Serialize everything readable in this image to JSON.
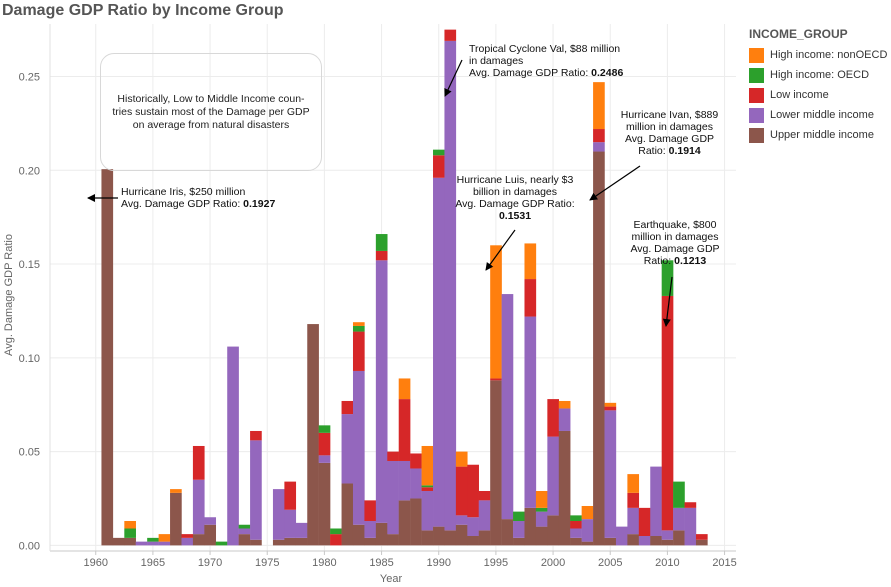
{
  "chart_data": {
    "type": "bar",
    "stacked": true,
    "title": "Damage GDP Ratio by Income Group",
    "xlabel": "Year",
    "ylabel": "Avg. Damage GDP Ratio",
    "xlim": [
      1956,
      2016
    ],
    "ylim": [
      -0.003,
      0.278
    ],
    "xticks": [
      1960,
      1965,
      1970,
      1975,
      1980,
      1985,
      1990,
      1995,
      2000,
      2005,
      2010,
      2015
    ],
    "xtick_labels": [
      "1960",
      "1965",
      "1970",
      "1975",
      "1980",
      "1985",
      "1990",
      "1995",
      "2000",
      "2005",
      "2010",
      "2015"
    ],
    "yticks": [
      0,
      0.05,
      0.1,
      0.15,
      0.2,
      0.25
    ],
    "ytick_labels": [
      "0.00",
      "0.05",
      "0.10",
      "0.15",
      "0.20",
      "0.25"
    ],
    "grid": true,
    "legend_title": "INCOME_GROUP",
    "legend_position": "right",
    "series": [
      {
        "name": "Upper middle income",
        "color": "#8c564b"
      },
      {
        "name": "Lower middle income",
        "color": "#9467bd"
      },
      {
        "name": "Low income",
        "color": "#d62728"
      },
      {
        "name": "High income: OECD",
        "color": "#2ca02c"
      },
      {
        "name": "High income: nonOECD",
        "color": "#ff7f0e"
      }
    ],
    "legend_order": [
      4,
      3,
      2,
      1,
      0
    ],
    "bars": [
      {
        "year": 1961,
        "segments": [
          0.2006,
          0,
          0,
          0,
          0
        ]
      },
      {
        "year": 1962,
        "segments": [
          0.004,
          0,
          0,
          0,
          0
        ]
      },
      {
        "year": 1963,
        "segments": [
          0.004,
          0,
          0,
          0.005,
          0.004
        ]
      },
      {
        "year": 1964,
        "segments": [
          0,
          0.002,
          0,
          0,
          0
        ]
      },
      {
        "year": 1965,
        "segments": [
          0,
          0.002,
          0,
          0.002,
          0
        ]
      },
      {
        "year": 1966,
        "segments": [
          0,
          0.002,
          0,
          0,
          0.004
        ]
      },
      {
        "year": 1967,
        "segments": [
          0.028,
          0,
          0,
          0,
          0.002
        ]
      },
      {
        "year": 1968,
        "segments": [
          0,
          0.004,
          0.002,
          0,
          0
        ]
      },
      {
        "year": 1969,
        "segments": [
          0.006,
          0.029,
          0.018,
          0,
          0
        ]
      },
      {
        "year": 1970,
        "segments": [
          0.011,
          0.004,
          0,
          0,
          0
        ]
      },
      {
        "year": 1971,
        "segments": [
          0,
          0,
          0,
          0.002,
          0
        ]
      },
      {
        "year": 1972,
        "segments": [
          0,
          0.106,
          0,
          0,
          0
        ]
      },
      {
        "year": 1973,
        "segments": [
          0.006,
          0.003,
          0,
          0.002,
          0
        ]
      },
      {
        "year": 1974,
        "segments": [
          0.003,
          0.053,
          0.005,
          0,
          0
        ]
      },
      {
        "year": 1976,
        "segments": [
          0.003,
          0.027,
          0,
          0,
          0
        ]
      },
      {
        "year": 1977,
        "segments": [
          0.004,
          0.015,
          0.015,
          0,
          0
        ]
      },
      {
        "year": 1978,
        "segments": [
          0.004,
          0.008,
          0,
          0,
          0
        ]
      },
      {
        "year": 1979,
        "segments": [
          0.118,
          0,
          0,
          0,
          0
        ]
      },
      {
        "year": 1980,
        "segments": [
          0.044,
          0.004,
          0.012,
          0.004,
          0
        ]
      },
      {
        "year": 1981,
        "segments": [
          0,
          0,
          0.006,
          0.003,
          0
        ]
      },
      {
        "year": 1982,
        "segments": [
          0.033,
          0.037,
          0.007,
          0,
          0
        ]
      },
      {
        "year": 1983,
        "segments": [
          0.011,
          0.082,
          0.021,
          0.003,
          0.002
        ]
      },
      {
        "year": 1984,
        "segments": [
          0.004,
          0.009,
          0.011,
          0,
          0
        ]
      },
      {
        "year": 1985,
        "segments": [
          0.012,
          0.14,
          0.005,
          0.009,
          0
        ]
      },
      {
        "year": 1986,
        "segments": [
          0.006,
          0.039,
          0.005,
          0,
          0
        ]
      },
      {
        "year": 1987,
        "segments": [
          0.024,
          0.021,
          0.033,
          0,
          0.011
        ]
      },
      {
        "year": 1988,
        "segments": [
          0.025,
          0.016,
          0.008,
          0,
          0
        ]
      },
      {
        "year": 1989,
        "segments": [
          0.008,
          0.021,
          0.002,
          0.001,
          0.021
        ]
      },
      {
        "year": 1990,
        "segments": [
          0.01,
          0.186,
          0.012,
          0.003,
          0
        ]
      },
      {
        "year": 1991,
        "segments": [
          0.008,
          0.261,
          0.006,
          0,
          0
        ]
      },
      {
        "year": 1992,
        "segments": [
          0.011,
          0.005,
          0.026,
          0,
          0.008
        ]
      },
      {
        "year": 1993,
        "segments": [
          0.005,
          0.01,
          0.028,
          0,
          0
        ]
      },
      {
        "year": 1994,
        "segments": [
          0.008,
          0.016,
          0.005,
          0,
          0
        ]
      },
      {
        "year": 1995,
        "segments": [
          0.088,
          0,
          0.001,
          0,
          0.071
        ]
      },
      {
        "year": 1996,
        "segments": [
          0.014,
          0.12,
          0,
          0,
          0
        ]
      },
      {
        "year": 1997,
        "segments": [
          0.004,
          0.009,
          0,
          0.005,
          0
        ]
      },
      {
        "year": 1998,
        "segments": [
          0.02,
          0.102,
          0.02,
          0,
          0.019
        ]
      },
      {
        "year": 1999,
        "segments": [
          0.01,
          0.008,
          0,
          0.002,
          0.009
        ]
      },
      {
        "year": 2000,
        "segments": [
          0.016,
          0.042,
          0.02,
          0,
          0
        ]
      },
      {
        "year": 2001,
        "segments": [
          0.061,
          0.012,
          0,
          0,
          0.004
        ]
      },
      {
        "year": 2002,
        "segments": [
          0.004,
          0.005,
          0.004,
          0.003,
          0
        ]
      },
      {
        "year": 2003,
        "segments": [
          0.002,
          0.012,
          0,
          0,
          0.007
        ]
      },
      {
        "year": 2004,
        "segments": [
          0.21,
          0.005,
          0.007,
          0,
          0.025
        ]
      },
      {
        "year": 2005,
        "segments": [
          0.004,
          0.068,
          0.002,
          0,
          0.002
        ]
      },
      {
        "year": 2006,
        "segments": [
          0,
          0.01,
          0,
          0,
          0
        ]
      },
      {
        "year": 2007,
        "segments": [
          0.006,
          0.014,
          0.008,
          0,
          0.01
        ]
      },
      {
        "year": 2008,
        "segments": [
          0,
          0.005,
          0.015,
          0,
          0
        ]
      },
      {
        "year": 2009,
        "segments": [
          0.005,
          0.037,
          0,
          0,
          0
        ]
      },
      {
        "year": 2010,
        "segments": [
          0.003,
          0.005,
          0.125,
          0.019,
          0
        ]
      },
      {
        "year": 2011,
        "segments": [
          0.008,
          0.012,
          0,
          0.014,
          0
        ]
      },
      {
        "year": 2012,
        "segments": [
          0,
          0.02,
          0.003,
          0,
          0
        ]
      },
      {
        "year": 2013,
        "segments": [
          0.003,
          0,
          0.003,
          0,
          0
        ]
      }
    ],
    "annotations": [
      {
        "lines": [
          "Hurricane Iris, $250 million"
        ],
        "last": "Avg. Damage GDP Ratio: ",
        "value": "0.1927",
        "target_year": 1961,
        "target_value": 0.1927
      },
      {
        "lines": [
          "Tropical Cyclone Val, $88 million",
          "in damages"
        ],
        "last": "Avg. Damage GDP Ratio: ",
        "value": "0.2486",
        "target_year": 1991,
        "target_value": 0.2486
      },
      {
        "lines": [
          "Hurricane Luis, nearly $3",
          "billion in damages",
          "Avg. Damage GDP Ratio:"
        ],
        "last": "",
        "value": "0.1531",
        "target_year": 1995,
        "target_value": 0.1531
      },
      {
        "lines": [
          "Hurricane Ivan, $889",
          "million in damages",
          "Avg. Damage GDP"
        ],
        "last": "Ratio: ",
        "value": "0.1914",
        "target_year": 2004,
        "target_value": 0.1914
      },
      {
        "lines": [
          "Earthquake, $800",
          "million in damages",
          "Avg. Damage GDP"
        ],
        "last": "Ratio: ",
        "value": "0.1213",
        "target_year": 2010,
        "target_value": 0.1213
      }
    ],
    "note": "Historically, Low to Middle Income coun-tries sustain most of the Damage per GDP on average from natural disasters"
  }
}
